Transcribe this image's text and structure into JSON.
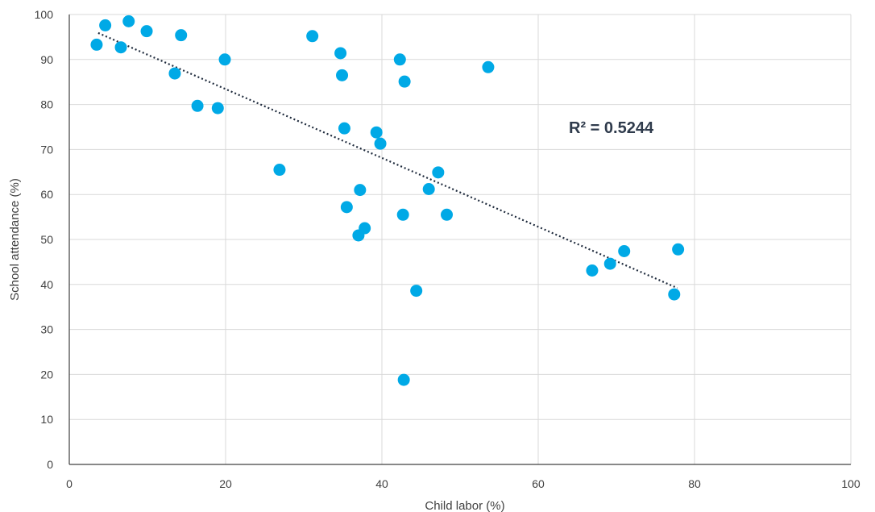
{
  "chart_data": {
    "type": "scatter",
    "xlabel": "Child labor (%)",
    "ylabel": "School attendance (%)",
    "xlim": [
      0,
      100
    ],
    "ylim": [
      0,
      100
    ],
    "x_ticks": [
      "0",
      "20",
      "40",
      "60",
      "80",
      "100"
    ],
    "y_ticks": [
      "0",
      "10",
      "20",
      "30",
      "40",
      "50",
      "60",
      "70",
      "80",
      "90",
      "100"
    ],
    "grid": true,
    "marker_color": "#00a9e6",
    "trendline_color": "#1f2b3d",
    "annotation": "R² = 0.5244",
    "trendline": {
      "x": [
        3.7,
        77.8
      ],
      "y": [
        95.9,
        39.2
      ]
    },
    "series": [
      {
        "points": [
          {
            "x": 3.5,
            "y": 93.3
          },
          {
            "x": 4.6,
            "y": 97.6
          },
          {
            "x": 6.6,
            "y": 92.7
          },
          {
            "x": 7.6,
            "y": 98.5
          },
          {
            "x": 9.9,
            "y": 96.3
          },
          {
            "x": 13.5,
            "y": 86.9
          },
          {
            "x": 14.3,
            "y": 95.4
          },
          {
            "x": 16.4,
            "y": 79.7
          },
          {
            "x": 19.0,
            "y": 79.2
          },
          {
            "x": 19.9,
            "y": 90.0
          },
          {
            "x": 26.9,
            "y": 65.5
          },
          {
            "x": 31.1,
            "y": 95.2
          },
          {
            "x": 34.7,
            "y": 91.4
          },
          {
            "x": 34.9,
            "y": 86.5
          },
          {
            "x": 35.2,
            "y": 74.7
          },
          {
            "x": 35.5,
            "y": 57.2
          },
          {
            "x": 37.0,
            "y": 50.9
          },
          {
            "x": 37.2,
            "y": 61.0
          },
          {
            "x": 37.8,
            "y": 52.5
          },
          {
            "x": 39.3,
            "y": 73.8
          },
          {
            "x": 39.8,
            "y": 71.3
          },
          {
            "x": 42.3,
            "y": 90.0
          },
          {
            "x": 42.7,
            "y": 55.5
          },
          {
            "x": 42.8,
            "y": 18.8
          },
          {
            "x": 42.9,
            "y": 85.1
          },
          {
            "x": 44.4,
            "y": 38.6
          },
          {
            "x": 46.0,
            "y": 61.2
          },
          {
            "x": 47.2,
            "y": 64.9
          },
          {
            "x": 48.3,
            "y": 55.5
          },
          {
            "x": 53.6,
            "y": 88.3
          },
          {
            "x": 66.9,
            "y": 43.1
          },
          {
            "x": 69.2,
            "y": 44.6
          },
          {
            "x": 71.0,
            "y": 47.4
          },
          {
            "x": 77.4,
            "y": 37.8
          },
          {
            "x": 77.9,
            "y": 47.8
          }
        ]
      }
    ]
  }
}
